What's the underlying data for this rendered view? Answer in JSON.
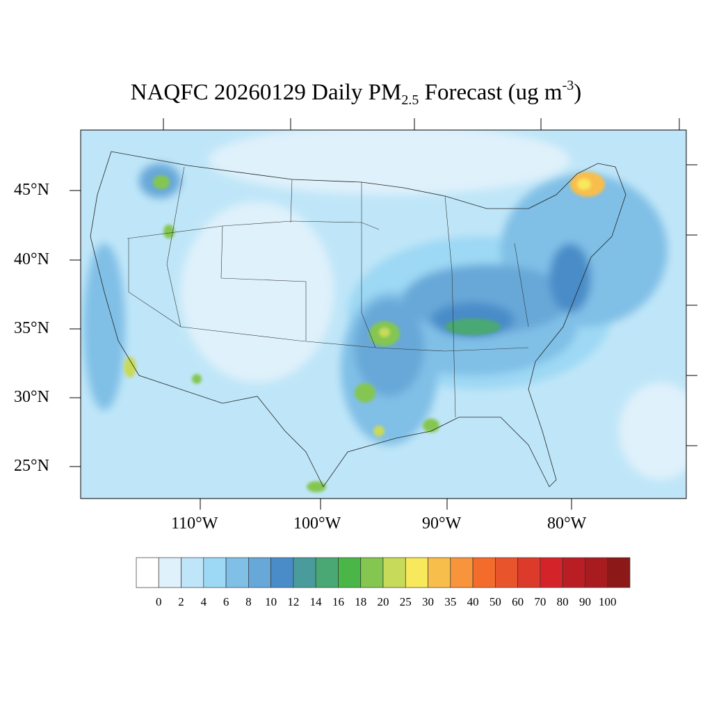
{
  "title": {
    "main": "NAQFC 20260129 Daily PM",
    "subscript": "2.5",
    "after": " Forecast (ug m",
    "superscript": "-3",
    "close": ")"
  },
  "map": {
    "lat_labels": [
      "45°N",
      "40°N",
      "35°N",
      "30°N",
      "25°N"
    ],
    "lon_labels": [
      "110°W",
      "100°W",
      "90°W",
      "80°W"
    ],
    "background_color": "#bfe6f8"
  },
  "colorbar": {
    "labels": [
      "0",
      "2",
      "4",
      "6",
      "8",
      "10",
      "12",
      "14",
      "16",
      "18",
      "20",
      "25",
      "30",
      "35",
      "40",
      "50",
      "60",
      "70",
      "80",
      "90",
      "100"
    ],
    "colors": [
      "#ffffff",
      "#dff1fb",
      "#bfe6f8",
      "#9dd8f4",
      "#80bfe6",
      "#68a8d8",
      "#4a8cc8",
      "#4a9c9c",
      "#4aa874",
      "#4ab648",
      "#84c650",
      "#c8da5a",
      "#f8e85c",
      "#f8be4c",
      "#f8943c",
      "#f46c2c",
      "#e8542c",
      "#dc3a2a",
      "#d4242a",
      "#b81e24",
      "#a81c20",
      "#8c1818"
    ]
  }
}
